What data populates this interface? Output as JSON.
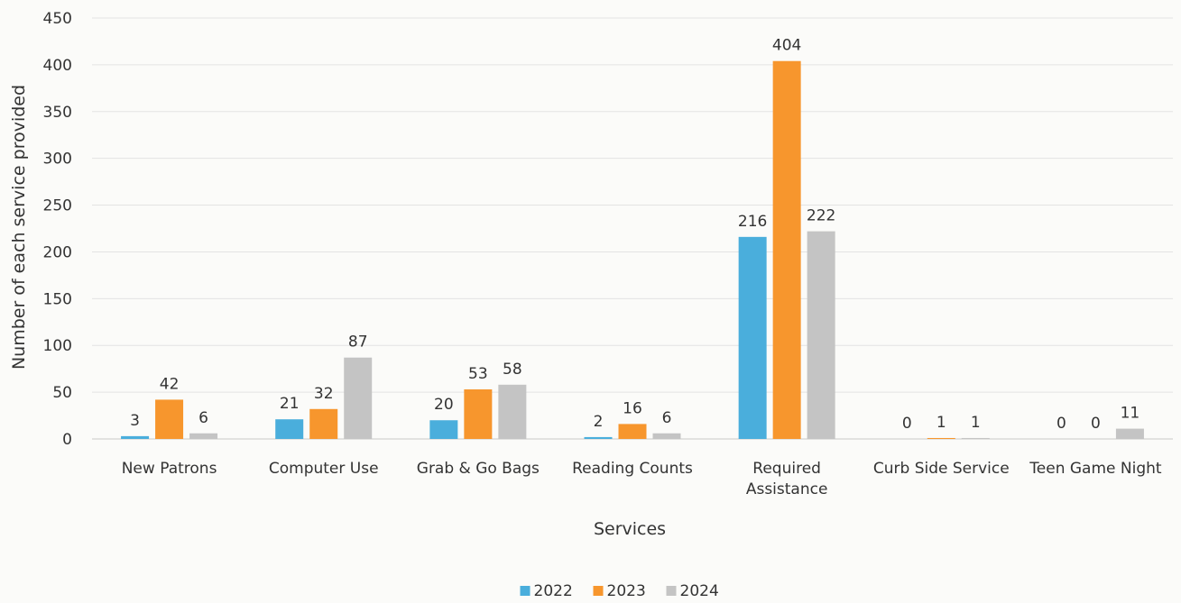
{
  "chart_data": {
    "type": "bar",
    "title": "",
    "xlabel": "Services",
    "ylabel": "Number of each service provided",
    "ylim": [
      0,
      450
    ],
    "yticks": [
      0,
      50,
      100,
      150,
      200,
      250,
      300,
      350,
      400,
      450
    ],
    "grid": true,
    "legend_position": "bottom",
    "categories": [
      [
        "New Patrons"
      ],
      [
        "Computer Use"
      ],
      [
        "Grab & Go Bags"
      ],
      [
        "Reading Counts"
      ],
      [
        "Required",
        "Assistance"
      ],
      [
        "Curb Side Service"
      ],
      [
        "Teen Game Night"
      ]
    ],
    "series": [
      {
        "name": "2022",
        "color": "#4aaedc",
        "values": [
          3,
          21,
          20,
          2,
          216,
          0,
          0
        ]
      },
      {
        "name": "2023",
        "color": "#f7962d",
        "values": [
          42,
          32,
          53,
          16,
          404,
          1,
          0
        ]
      },
      {
        "name": "2024",
        "color": "#c4c4c4",
        "values": [
          6,
          87,
          58,
          6,
          222,
          1,
          11
        ]
      }
    ]
  }
}
